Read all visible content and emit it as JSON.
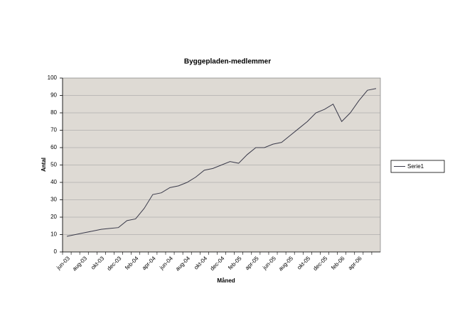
{
  "chart_data": {
    "type": "line",
    "title": "Byggepladen-medlemmer",
    "x_label": "Måned",
    "y_label": "Antal",
    "categories": [
      "jun-03",
      null,
      "aug-03",
      null,
      "okt-03",
      null,
      "dec-03",
      null,
      "feb-04",
      null,
      "apr-04",
      null,
      "jun-04",
      null,
      "aug-04",
      null,
      "okt-04",
      null,
      "dec-04",
      null,
      "feb-05",
      null,
      "apr-05",
      null,
      "jun-05",
      null,
      "aug-05",
      null,
      "okt-05",
      null,
      "dec-05",
      null,
      "feb-06",
      null,
      "apr-06",
      null,
      null
    ],
    "series": [
      {
        "name": "Serie1",
        "color": "#3a3a4a",
        "values": [
          9,
          10,
          11,
          12,
          13,
          13.5,
          14,
          18,
          19,
          25,
          33,
          34,
          37,
          38,
          40,
          43,
          47,
          48,
          50,
          52,
          51,
          56,
          60,
          60,
          62,
          63,
          67,
          71,
          75,
          80,
          82,
          85,
          75,
          80,
          87,
          93,
          94
        ]
      }
    ],
    "ylim": [
      0,
      100
    ],
    "yticks": [
      0,
      10,
      20,
      30,
      40,
      50,
      60,
      70,
      80,
      90,
      100
    ],
    "grid": true,
    "legend": "right"
  }
}
